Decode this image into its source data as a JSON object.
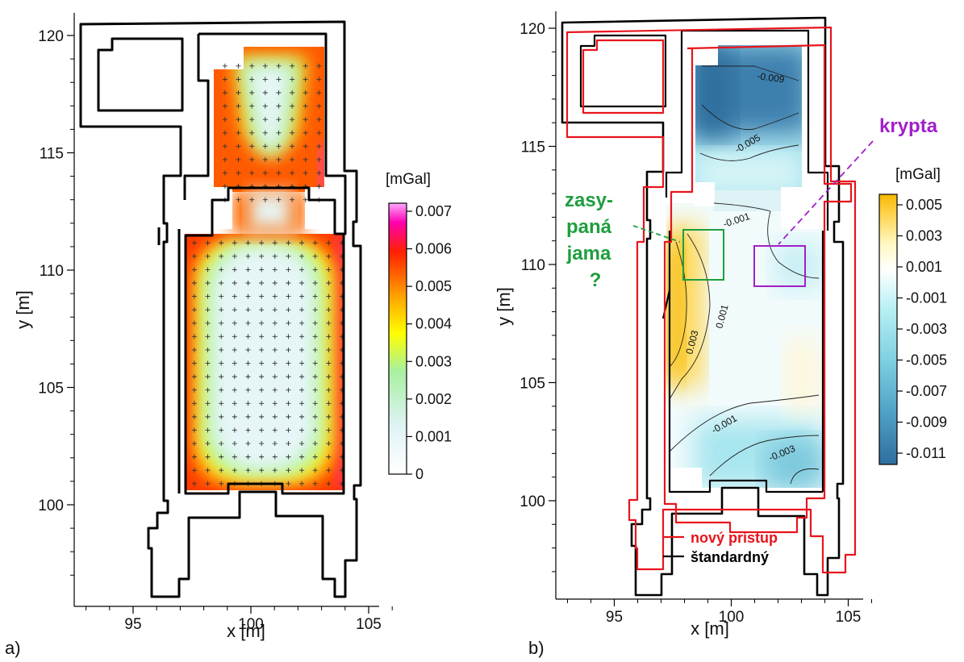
{
  "colors": {
    "wall": "#000000",
    "new_approach": "#e8141c",
    "pit_annotation": "#1e9e3e",
    "crypt_annotation": "#a020c8"
  },
  "chart_data": [
    {
      "panel": "a)",
      "type": "heatmap",
      "xlabel": "x [m]",
      "ylabel": "y [m]",
      "xlim": [
        92.5,
        106.5
      ],
      "ylim": [
        96,
        120.5
      ],
      "xticks": [
        "95",
        "100",
        "105"
      ],
      "yticks": [
        "100",
        "105",
        "110",
        "115",
        "120"
      ],
      "colorbar": {
        "title": "[mGal]",
        "labels": [
          "0.007",
          "0.006",
          "0.005",
          "0.004",
          "0.003",
          "0.002",
          "0.001",
          "0"
        ],
        "stops": [
          "#ffffff",
          "#dff3f6",
          "#a8f0a0",
          "#ffff00",
          "#ffa000",
          "#ff2000",
          "#ff00b0",
          "#ffaaff"
        ]
      },
      "grid_points": {
        "x_spacing": 0.57,
        "upper_area": {
          "xmin": 98.9,
          "xmax": 102.9,
          "ymin": 113.0,
          "ymax": 119.2
        },
        "lower_area": {
          "xmin": 97.6,
          "xmax": 104.0,
          "ymin": 100.9,
          "ymax": 111.3
        }
      }
    },
    {
      "panel": "b)",
      "type": "heatmap",
      "xlabel": "x [m]",
      "ylabel": "y [m]",
      "xlim": [
        92.5,
        106.5
      ],
      "ylim": [
        96,
        120.5
      ],
      "xticks": [
        "95",
        "100",
        "105"
      ],
      "yticks": [
        "100",
        "105",
        "110",
        "115",
        "120"
      ],
      "colorbar": {
        "title": "[mGal]",
        "labels": [
          "0.005",
          "0.003",
          "0.001",
          "-0.001",
          "-0.003",
          "-0.005",
          "-0.007",
          "-0.009",
          "-0.011"
        ],
        "stops": [
          "#2e6e9e",
          "#4d9ec4",
          "#7ccfe0",
          "#b9f0f4",
          "#ffffff",
          "#fff7c0",
          "#ffd24a",
          "#f5b800"
        ]
      },
      "contour_labels": [
        "-0.009",
        "-0.005",
        "-0.001",
        "0.001",
        "0.003",
        "-0.001",
        "-0.003"
      ],
      "annotations": {
        "crypt": "krypta",
        "pit": [
          "zasy-",
          "paná",
          "jama",
          "?"
        ]
      },
      "legend": {
        "position": "bottom-left",
        "entries": [
          {
            "label": "nový prístup",
            "color": "#e8141c"
          },
          {
            "label": "štandardný",
            "color": "#000000"
          }
        ]
      }
    }
  ]
}
